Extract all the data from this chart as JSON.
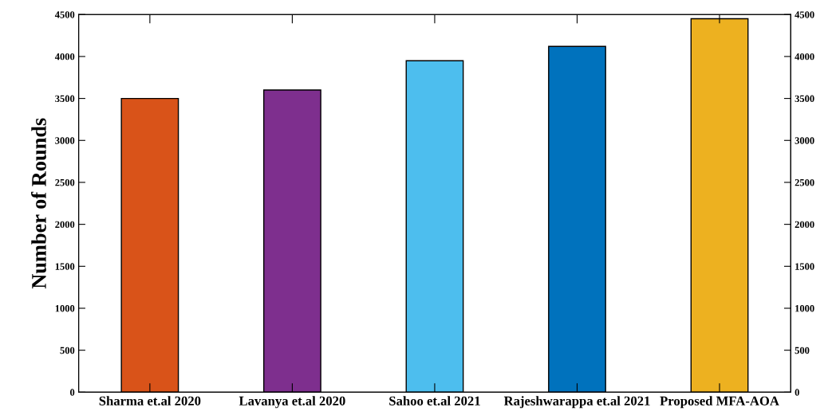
{
  "chart_data": {
    "type": "bar",
    "ylabel": "Number of Rounds",
    "categories": [
      "Sharma et.al 2020",
      "Lavanya et.al 2020",
      "Sahoo et.al 2021",
      "Rajeshwarappa et.al 2021",
      "Proposed MFA-AOA"
    ],
    "values": [
      3500,
      3600,
      3950,
      4120,
      4450
    ],
    "colors": [
      "#d95319",
      "#7e2f8e",
      "#4dbeee",
      "#0072bd",
      "#edb120"
    ],
    "ylim": [
      0,
      4500
    ],
    "yticks": [
      0,
      500,
      1000,
      1500,
      2000,
      2500,
      3000,
      3500,
      4000,
      4500
    ],
    "y2lim": [
      0,
      4500
    ],
    "y2ticks": [
      0,
      500,
      1000,
      1500,
      2000,
      2500,
      3000,
      3500,
      4000,
      4500
    ],
    "grid": false,
    "legend": false
  }
}
